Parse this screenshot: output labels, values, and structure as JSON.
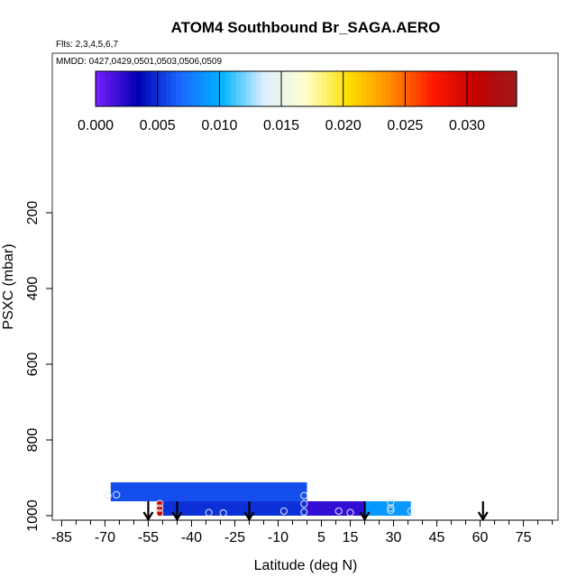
{
  "chart_data": {
    "type": "heatmap",
    "title": "ATOM4 Southbound Br_SAGA.AERO",
    "flights_note": "Flts: 2,3,4,5,6,7",
    "dates_note": "MMDD: 0427,0429,0501,0503,0506,0509",
    "xlabel": "Latitude (deg N)",
    "ylabel": "PSXC (mbar)",
    "xlim": [
      -87,
      87
    ],
    "ylim": [
      1000,
      0
    ],
    "x_ticks": [
      -85,
      -70,
      -55,
      -40,
      -25,
      -10,
      5,
      15,
      30,
      45,
      60,
      75
    ],
    "y_ticks": [
      200,
      400,
      600,
      800,
      1000
    ],
    "colorbar": {
      "min": 0.0,
      "max": 0.034,
      "ticks": [
        "0.000",
        "0.005",
        "0.010",
        "0.015",
        "0.020",
        "0.025",
        "0.030"
      ],
      "tick_values": [
        0.0,
        0.005,
        0.01,
        0.015,
        0.02,
        0.025,
        0.03
      ],
      "colors": [
        "#7a1fff",
        "#0000b4",
        "#1a66ff",
        "#00b4ff",
        "#dcefff",
        "#ffffcc",
        "#ffe000",
        "#ff8c00",
        "#ff1a00",
        "#c40000",
        "#9e1b1b"
      ]
    },
    "cells": [
      {
        "lat_min": -68,
        "lat_max": 0,
        "p_top": 912,
        "p_bottom": 962,
        "value": 0.006
      },
      {
        "lat_min": -52,
        "lat_max": -50,
        "p_top": 962,
        "p_bottom": 1000,
        "value": 0.03
      },
      {
        "lat_min": -50,
        "lat_max": 0,
        "p_top": 962,
        "p_bottom": 1000,
        "value": 0.005
      },
      {
        "lat_min": 0,
        "lat_max": 20,
        "p_top": 962,
        "p_bottom": 1000,
        "value": 0.002
      },
      {
        "lat_min": 20,
        "lat_max": 36,
        "p_top": 962,
        "p_bottom": 1000,
        "value": 0.009
      }
    ],
    "points": [
      {
        "lat": -69,
        "p": 947
      },
      {
        "lat": -66,
        "p": 945
      },
      {
        "lat": -51,
        "p": 968
      },
      {
        "lat": -51,
        "p": 980
      },
      {
        "lat": -51,
        "p": 993
      },
      {
        "lat": -34,
        "p": 992
      },
      {
        "lat": -29,
        "p": 993
      },
      {
        "lat": -8,
        "p": 988
      },
      {
        "lat": -1,
        "p": 947
      },
      {
        "lat": -1,
        "p": 969
      },
      {
        "lat": -1,
        "p": 990
      },
      {
        "lat": 11,
        "p": 988
      },
      {
        "lat": 15,
        "p": 992
      },
      {
        "lat": 29,
        "p": 965
      },
      {
        "lat": 29,
        "p": 980
      },
      {
        "lat": 29,
        "p": 986
      },
      {
        "lat": 36,
        "p": 988
      }
    ],
    "arrows": [
      -55,
      -45,
      -20,
      20,
      61
    ]
  }
}
